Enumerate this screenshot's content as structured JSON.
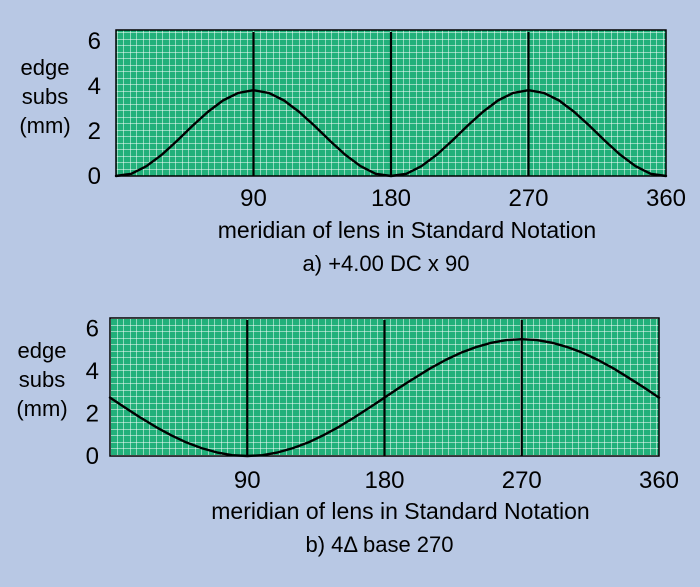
{
  "colors": {
    "background": "#b8c8e4",
    "plot_fill": "#22b07a",
    "grid_line": "#ffffff",
    "curve": "#000000"
  },
  "chart_data": [
    {
      "type": "line",
      "ylabel": [
        "edge",
        "subs",
        "(mm)"
      ],
      "xlabel": "meridian of lens in Standard Notation",
      "caption": "a)  +4.00 DC x 90",
      "xlim": [
        0,
        360
      ],
      "ylim": [
        0,
        6.5
      ],
      "xticks": [
        90,
        180,
        270,
        360
      ],
      "yticks": [
        0,
        2,
        4,
        6
      ],
      "grid": true,
      "vlines": [
        90,
        180,
        270
      ],
      "series": [
        {
          "x": [
            0,
            10,
            20,
            30,
            40,
            50,
            60,
            70,
            80,
            90,
            100,
            110,
            120,
            130,
            140,
            150,
            160,
            170,
            180,
            190,
            200,
            210,
            220,
            230,
            240,
            250,
            260,
            270,
            280,
            290,
            300,
            310,
            320,
            330,
            340,
            350,
            360
          ],
          "values": [
            0,
            0.1,
            0.44,
            0.95,
            1.57,
            2.23,
            2.85,
            3.36,
            3.7,
            3.82,
            3.7,
            3.36,
            2.85,
            2.23,
            1.57,
            0.95,
            0.44,
            0.1,
            0,
            0.1,
            0.44,
            0.95,
            1.57,
            2.23,
            2.85,
            3.36,
            3.7,
            3.82,
            3.7,
            3.36,
            2.85,
            2.23,
            1.57,
            0.95,
            0.44,
            0.1,
            0
          ]
        }
      ]
    },
    {
      "type": "line",
      "ylabel": [
        "edge",
        "subs",
        "(mm)"
      ],
      "xlabel": "meridian of lens in Standard Notation",
      "caption": "b)  4Δ base 270",
      "xlim": [
        0,
        360
      ],
      "ylim": [
        0,
        6.5
      ],
      "xticks": [
        90,
        180,
        270,
        360
      ],
      "yticks": [
        0,
        2,
        4,
        6
      ],
      "grid": true,
      "vlines": [
        90,
        180,
        270
      ],
      "series": [
        {
          "x": [
            0,
            10,
            20,
            30,
            40,
            50,
            60,
            70,
            80,
            90,
            100,
            110,
            120,
            130,
            140,
            150,
            160,
            170,
            180,
            190,
            200,
            210,
            220,
            230,
            240,
            250,
            260,
            270,
            280,
            290,
            300,
            310,
            320,
            330,
            340,
            350,
            360
          ],
          "values": [
            2.75,
            2.27,
            1.81,
            1.37,
            0.98,
            0.64,
            0.37,
            0.17,
            0.04,
            0,
            0.04,
            0.17,
            0.37,
            0.64,
            0.98,
            1.37,
            1.81,
            2.27,
            2.75,
            3.23,
            3.69,
            4.13,
            4.52,
            4.86,
            5.13,
            5.33,
            5.46,
            5.5,
            5.46,
            5.33,
            5.13,
            4.86,
            4.52,
            4.13,
            3.69,
            3.23,
            2.75
          ]
        }
      ]
    }
  ]
}
